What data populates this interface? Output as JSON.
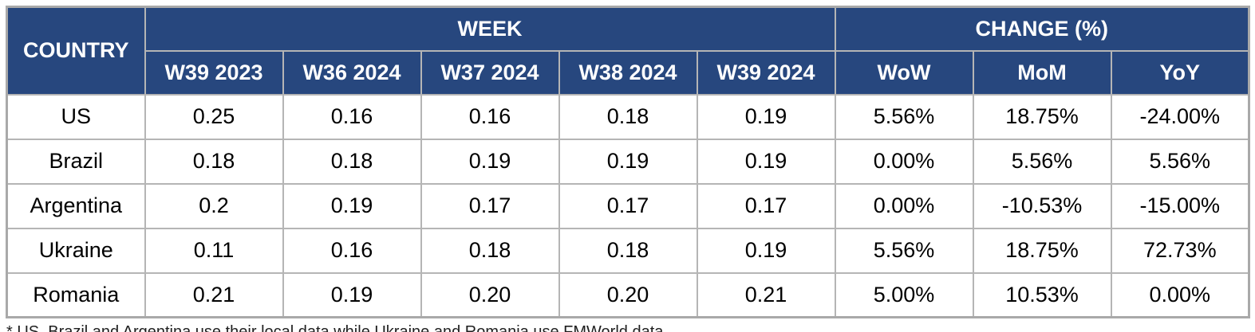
{
  "chart_data": {
    "type": "table",
    "header": {
      "country": "COUNTRY",
      "week_group": "WEEK",
      "change_group": "CHANGE (%)",
      "week_cols": [
        "W39 2023",
        "W36 2024",
        "W37 2024",
        "W38 2024",
        "W39 2024"
      ],
      "change_cols": [
        "WoW",
        "MoM",
        "YoY"
      ]
    },
    "rows": [
      {
        "country": "US",
        "values": [
          "0.25",
          "0.16",
          "0.16",
          "0.18",
          "0.19"
        ],
        "changes": [
          "5.56%",
          "18.75%",
          "-24.00%"
        ]
      },
      {
        "country": "Brazil",
        "values": [
          "0.18",
          "0.18",
          "0.19",
          "0.19",
          "0.19"
        ],
        "changes": [
          "0.00%",
          "5.56%",
          "5.56%"
        ]
      },
      {
        "country": "Argentina",
        "values": [
          "0.2",
          "0.19",
          "0.17",
          "0.17",
          "0.17"
        ],
        "changes": [
          "0.00%",
          "-10.53%",
          "-15.00%"
        ]
      },
      {
        "country": "Ukraine",
        "values": [
          "0.11",
          "0.16",
          "0.18",
          "0.18",
          "0.19"
        ],
        "changes": [
          "5.56%",
          "18.75%",
          "72.73%"
        ]
      },
      {
        "country": "Romania",
        "values": [
          "0.21",
          "0.19",
          "0.20",
          "0.20",
          "0.21"
        ],
        "changes": [
          "5.00%",
          "10.53%",
          "0.00%"
        ]
      }
    ],
    "footnote": "* US, Brazil and Argentina use their local data while Ukraine and Romania use FMWorld data",
    "colors": {
      "header_bg": "#27477E",
      "header_text": "#FFFFFF",
      "grid_line": "#B5B5B5",
      "outer_border": "#A9A9A9",
      "cell_text": "#000000"
    }
  }
}
